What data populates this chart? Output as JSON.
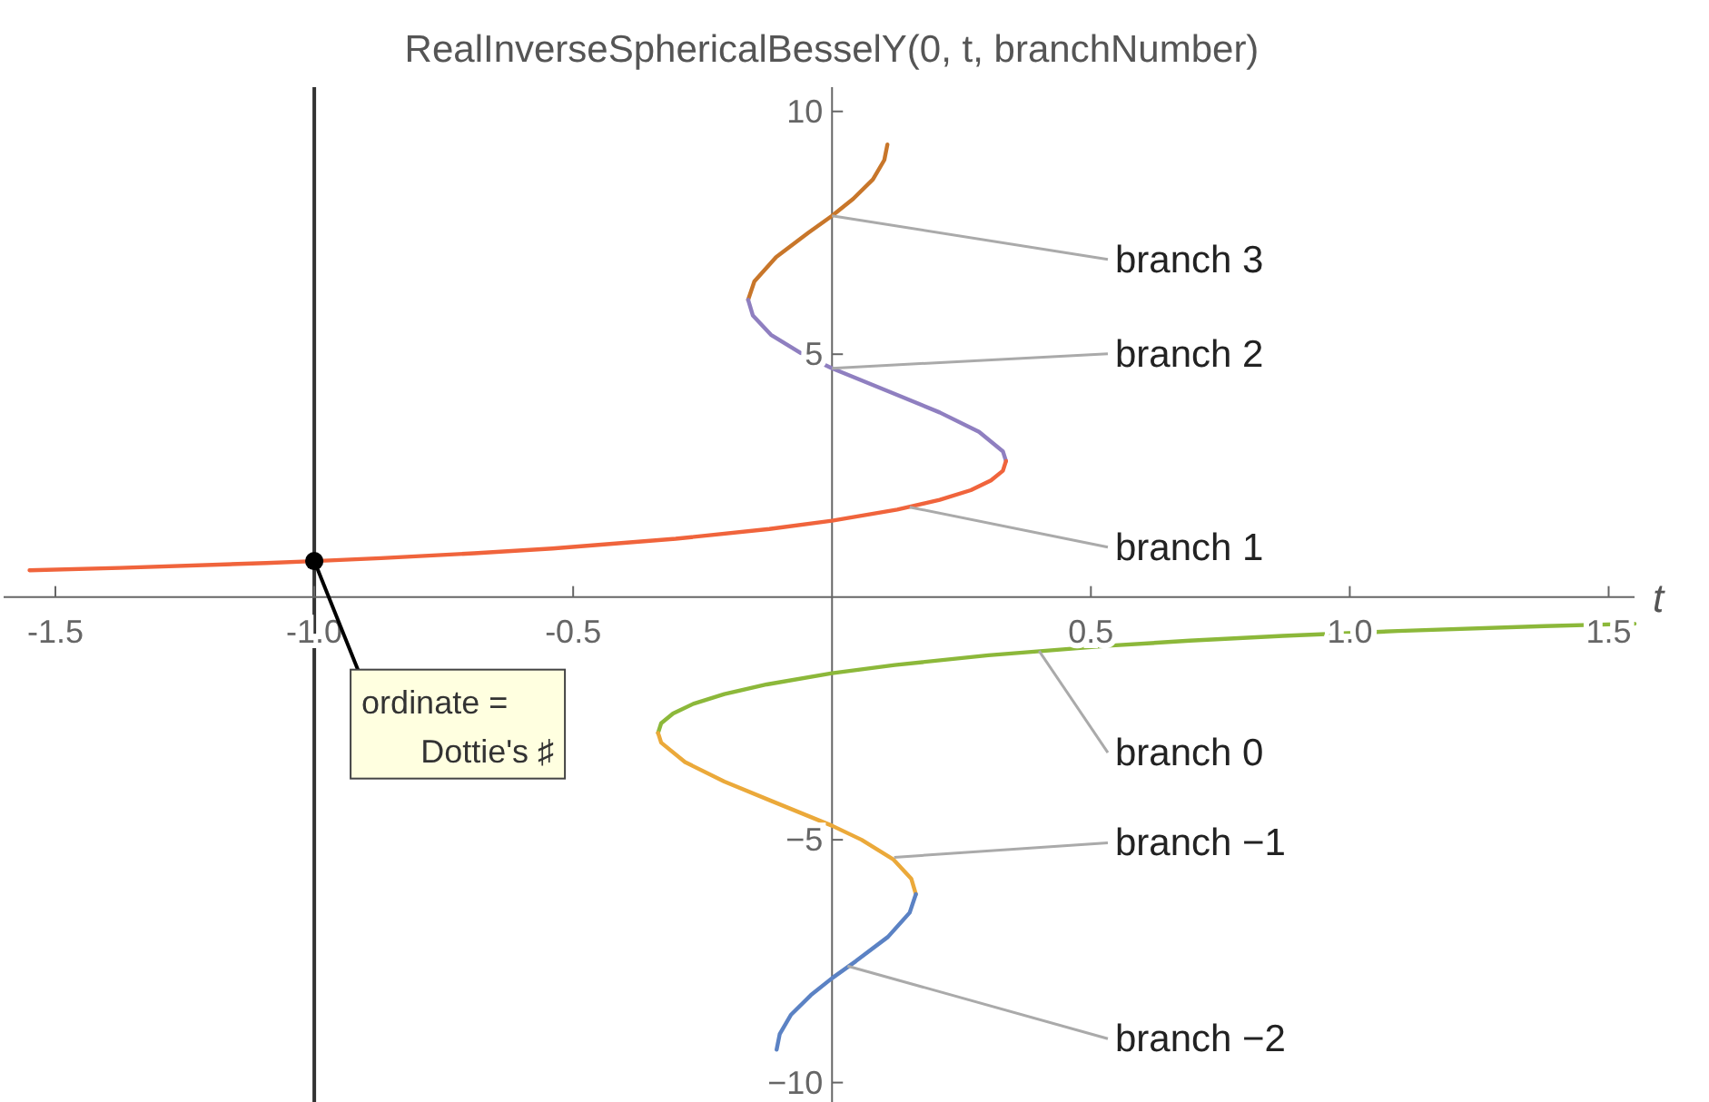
{
  "chart_data": {
    "type": "line",
    "title": "RealInverseSphericalBesselY(0, t, branchNumber)",
    "xlabel": "t",
    "xlim": [
      -1.6,
      1.55
    ],
    "ylim": [
      -10.4,
      10.5
    ],
    "xticks": [
      {
        "value": -1.5,
        "label": "-1.5"
      },
      {
        "value": -1,
        "label": "-1.0"
      },
      {
        "value": -0.5,
        "label": "-0.5"
      },
      {
        "value": 0.5,
        "label": "0.5"
      },
      {
        "value": 1,
        "label": "1.0"
      },
      {
        "value": 1.5,
        "label": "1.5"
      }
    ],
    "yticks": [
      {
        "value": -10,
        "label": "−10"
      },
      {
        "value": -5,
        "label": "−5"
      },
      5,
      10
    ],
    "grid": false,
    "marker": "none",
    "line_style": "solid",
    "series": [
      {
        "color": "#c8762a",
        "x": [
          -0.162,
          -0.15,
          -0.108,
          -0.046,
          0,
          0.041,
          0.079,
          0.101,
          0.107
        ],
        "values": [
          6.12,
          6.5,
          7.0,
          7.5,
          7.85,
          8.2,
          8.6,
          9.0,
          9.32
        ]
      },
      {
        "color": "#8f7fc0",
        "x": [
          0.336,
          0.33,
          0.284,
          0.208,
          0.117,
          0,
          -0.057,
          -0.118,
          -0.153,
          -0.162
        ],
        "values": [
          2.8,
          3.0,
          3.4,
          3.8,
          4.2,
          4.71,
          5.0,
          5.4,
          5.8,
          6.12
        ]
      },
      {
        "color": "#f0643c",
        "x": [
          -1.55,
          -1.376,
          -1.093,
          -1.0,
          -0.871,
          -0.691,
          -0.54,
          -0.302,
          -0.121,
          0,
          0.126,
          0.208,
          0.268,
          0.307,
          0.33,
          0.336
        ],
        "values": [
          0.55,
          0.6,
          0.7,
          0.74,
          0.8,
          0.9,
          1.0,
          1.2,
          1.4,
          1.57,
          1.8,
          2.0,
          2.2,
          2.4,
          2.6,
          2.8
        ]
      },
      {
        "color": "#8cb83a",
        "x": [
          1.55,
          1.376,
          1.093,
          0.871,
          0.691,
          0.54,
          0.302,
          0.121,
          0,
          -0.126,
          -0.208,
          -0.268,
          -0.307,
          -0.33,
          -0.336
        ],
        "values": [
          -0.55,
          -0.6,
          -0.7,
          -0.8,
          -0.9,
          -1.0,
          -1.2,
          -1.4,
          -1.57,
          -1.8,
          -2.0,
          -2.2,
          -2.4,
          -2.6,
          -2.8
        ]
      },
      {
        "color": "#eba93a",
        "x": [
          -0.336,
          -0.33,
          -0.284,
          -0.208,
          -0.117,
          0,
          0.057,
          0.118,
          0.153,
          0.162
        ],
        "values": [
          -2.8,
          -3.0,
          -3.4,
          -3.8,
          -4.2,
          -4.71,
          -5.0,
          -5.4,
          -5.8,
          -6.12
        ]
      },
      {
        "color": "#5b82c4",
        "x": [
          0.162,
          0.15,
          0.108,
          0.046,
          0,
          -0.041,
          -0.079,
          -0.101,
          -0.107
        ],
        "values": [
          -6.12,
          -6.5,
          -7.0,
          -7.5,
          -7.85,
          -8.2,
          -8.6,
          -9.0,
          -9.32
        ]
      },
      {
        "type": "scatter",
        "color": "#000000",
        "marker": "circle",
        "x": [
          -1
        ],
        "values": [
          0.74
        ]
      }
    ],
    "ref_lines": [
      {
        "axis": "x",
        "value": -1,
        "color": "#333333"
      }
    ],
    "annotations": [
      {
        "text": "branch 3",
        "x": 0,
        "y": 7.85
      },
      {
        "text": "branch 2",
        "x": 0,
        "y": 4.71
      },
      {
        "text": "branch 1",
        "x": 0.15,
        "y": 1.85
      },
      {
        "text": "branch 0",
        "x": 0.4,
        "y": -1.11
      },
      {
        "text": "branch −1",
        "x": 0.12,
        "y": -5.36
      },
      {
        "text": "branch −2",
        "x": 0.03,
        "y": -7.6
      },
      {
        "text": "ordinate =\nDottie's ♯",
        "x": -1,
        "y": 0.74
      }
    ]
  }
}
